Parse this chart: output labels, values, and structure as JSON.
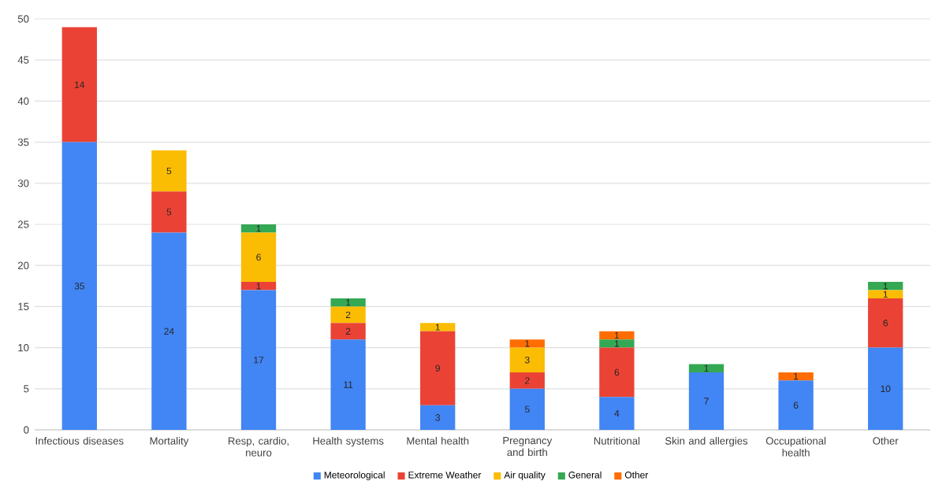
{
  "chart_data": {
    "type": "bar",
    "stacked": true,
    "categories": [
      "Infectious diseases",
      "Mortality",
      "Resp, cardio, neuro",
      "Health systems",
      "Mental health",
      "Pregnancy and birth",
      "Nutritional",
      "Skin and allergies",
      "Occupational health",
      "Other"
    ],
    "series": [
      {
        "name": "Meteorological",
        "color": "#4285f4",
        "values": [
          35,
          24,
          17,
          11,
          3,
          5,
          4,
          7,
          6,
          10
        ]
      },
      {
        "name": "Extreme Weather",
        "color": "#ea4335",
        "values": [
          14,
          5,
          1,
          2,
          9,
          2,
          6,
          null,
          null,
          6
        ]
      },
      {
        "name": "Air quality",
        "color": "#fbbc04",
        "values": [
          null,
          5,
          6,
          2,
          1,
          3,
          null,
          null,
          null,
          1
        ]
      },
      {
        "name": "General",
        "color": "#34a853",
        "values": [
          null,
          null,
          1,
          1,
          null,
          null,
          1,
          1,
          null,
          1
        ]
      },
      {
        "name": "Other",
        "color": "#ff6d01",
        "values": [
          null,
          null,
          null,
          null,
          null,
          1,
          1,
          null,
          1,
          null
        ]
      }
    ],
    "ylim": [
      0,
      50
    ],
    "yticks": [
      0,
      5,
      10,
      15,
      20,
      25,
      30,
      35,
      40,
      45,
      50
    ],
    "grid": "y",
    "legend": "bottom",
    "data_labels": true
  }
}
